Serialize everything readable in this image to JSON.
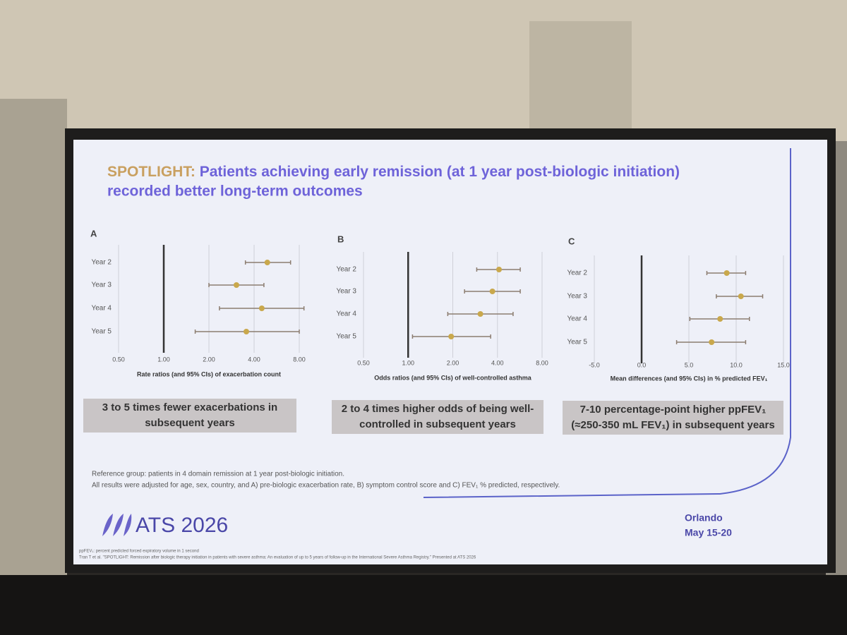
{
  "slide": {
    "title": {
      "lead": "SPOTLIGHT:",
      "lines": [
        "Patients achieving early remission (at 1 year post-biologic initiation)",
        "recorded better long-term outcomes"
      ]
    },
    "notes": [
      "Reference group: patients in 4 domain remission at 1 year post-biologic initiation.",
      "All results were adjusted for age, sex, country, and A) pre-biologic exacerbation rate, B) symptom control score and C) FEV₁ % predicted, respectively."
    ],
    "logo": "ATS 2026",
    "location": [
      "Orlando",
      "May 15-20"
    ],
    "footnotes": [
      "ppFEV₁: percent predicted forced expiratory volume in 1 second",
      "Tran T et al. \"SPOTLIGHT: Remission after biologic therapy initiation in patients with severe asthma: An evaluation of up to 5 years of follow-up in the International Severe Asthma Registry.\" Presented at ATS 2026"
    ]
  },
  "chart_data": [
    {
      "type": "forest",
      "panel": "A",
      "x_label": "Rate ratios (and 95% CIs) of exacerbation count",
      "categories": [
        "Year 2",
        "Year 3",
        "Year 4",
        "Year 5"
      ],
      "values": [
        4.9,
        3.05,
        4.5,
        3.55
      ],
      "lower": [
        3.5,
        2.0,
        2.35,
        1.62
      ],
      "upper": [
        7.0,
        4.65,
        8.6,
        8.0
      ],
      "xscale": "log",
      "xlim": [
        0.5,
        8
      ],
      "ref": 1,
      "xticks": [
        {
          "value": 0.5,
          "label": "0.50"
        },
        {
          "value": 1,
          "label": "1.00"
        },
        {
          "value": 2,
          "label": "2.00"
        },
        {
          "value": 4,
          "label": "4.00"
        },
        {
          "value": 8,
          "label": "8.00"
        }
      ],
      "color": "#c9a84c",
      "ci_color": "#8c7d70",
      "annotation": [
        "3 to 5 times fewer exacerbations in",
        "subsequent years"
      ]
    },
    {
      "type": "forest",
      "panel": "B",
      "x_label": "Odds ratios (and 95% CIs) of well-controlled asthma",
      "categories": [
        "Year 2",
        "Year 3",
        "Year 4",
        "Year 5"
      ],
      "values": [
        4.1,
        3.7,
        3.07,
        1.95
      ],
      "lower": [
        2.9,
        2.4,
        1.85,
        1.07
      ],
      "upper": [
        5.7,
        5.7,
        5.1,
        3.6
      ],
      "xscale": "log",
      "xlim": [
        0.5,
        8
      ],
      "ref": 1,
      "xticks": [
        {
          "value": 0.5,
          "label": "0.50"
        },
        {
          "value": 1,
          "label": "1.00"
        },
        {
          "value": 2,
          "label": "2.00"
        },
        {
          "value": 4,
          "label": "4.00"
        },
        {
          "value": 8,
          "label": "8.00"
        }
      ],
      "color": "#c9a84c",
      "ci_color": "#8c7d70",
      "annotation": [
        "2 to 4 times higher odds of being well-",
        "controlled in subsequent years"
      ]
    },
    {
      "type": "forest",
      "panel": "C",
      "x_label": "Mean differences (and 95% CIs) in % predicted FEV₁",
      "categories": [
        "Year 2",
        "Year 3",
        "Year 4",
        "Year 5"
      ],
      "values": [
        9.0,
        10.5,
        8.3,
        7.4
      ],
      "lower": [
        6.9,
        7.9,
        5.1,
        3.7
      ],
      "upper": [
        11.0,
        12.8,
        11.4,
        11.0
      ],
      "xscale": "linear",
      "xlim": [
        -5,
        15
      ],
      "ref": 0,
      "xticks": [
        {
          "value": -5,
          "label": "-5.0"
        },
        {
          "value": 0,
          "label": "0.0"
        },
        {
          "value": 5,
          "label": "5.0"
        },
        {
          "value": 10,
          "label": "10.0"
        },
        {
          "value": 15,
          "label": "15.0"
        }
      ],
      "color": "#c9a84c",
      "ci_color": "#8c7d70",
      "annotation": [
        "7-10 percentage-point higher ppFEV₁",
        "(≈250-350 mL FEV₁) in subsequent years"
      ]
    }
  ]
}
